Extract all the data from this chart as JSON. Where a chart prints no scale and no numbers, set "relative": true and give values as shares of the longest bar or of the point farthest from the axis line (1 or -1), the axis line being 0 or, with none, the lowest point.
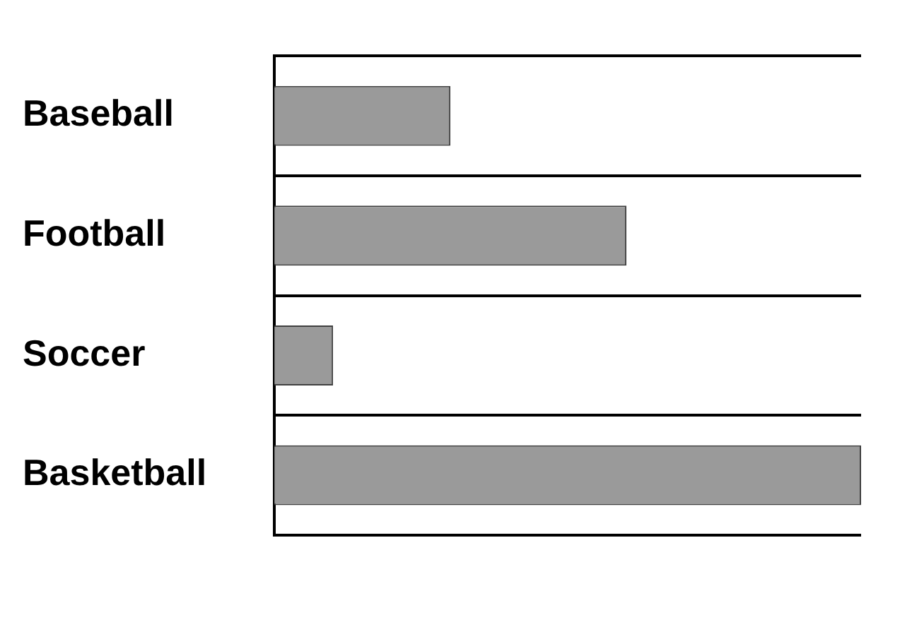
{
  "chart_data": {
    "type": "bar",
    "orientation": "horizontal",
    "relative": true,
    "categories": [
      "Baseball",
      "Football",
      "Soccer",
      "Basketball"
    ],
    "values": [
      0.3,
      0.6,
      0.1,
      1
    ],
    "color": "#9a9a9a",
    "grid": "y",
    "legend": false
  }
}
